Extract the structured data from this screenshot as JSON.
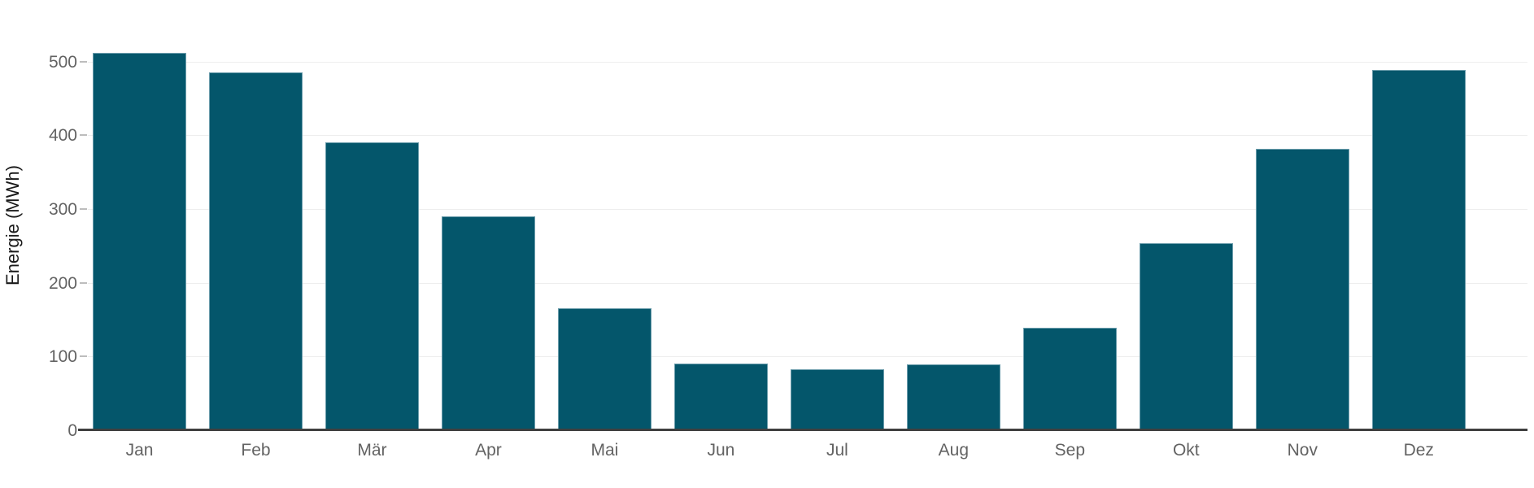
{
  "chart_data": {
    "type": "bar",
    "title": "",
    "xlabel": "",
    "ylabel": "Energie (MWh)",
    "categories": [
      "Jan",
      "Feb",
      "Mär",
      "Apr",
      "Mai",
      "Jun",
      "Jul",
      "Aug",
      "Sep",
      "Okt",
      "Nov",
      "Dez"
    ],
    "values": [
      512,
      485,
      390,
      290,
      165,
      90,
      83,
      89,
      139,
      254,
      381,
      488
    ],
    "ylim": [
      0,
      500
    ],
    "yticks": [
      0,
      100,
      200,
      300,
      400,
      500
    ],
    "y_tick_labels": [
      "0",
      "100",
      "200",
      "300",
      "400",
      "500"
    ],
    "grid": true,
    "legend": false,
    "bar_color": "#04566b",
    "bar_border_color": "#6c9dac",
    "gridline_color": "#eeeeee",
    "axis_line_color": "#3f3f3f",
    "tick_label_color": "#636363",
    "axis_title_color": "#1a1a1a"
  }
}
